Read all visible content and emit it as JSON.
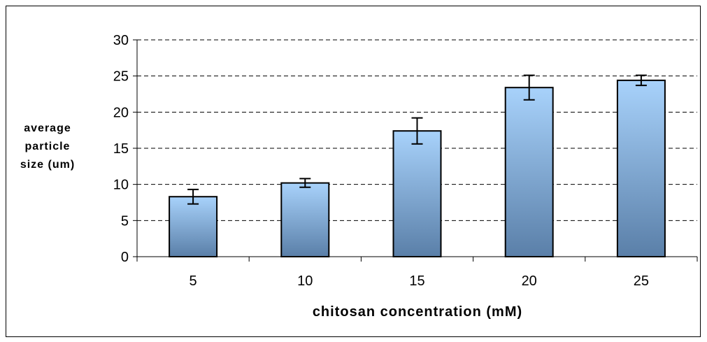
{
  "chart_data": {
    "type": "bar",
    "categories": [
      "5",
      "10",
      "15",
      "20",
      "25"
    ],
    "values": [
      8.3,
      10.2,
      17.4,
      23.4,
      24.4
    ],
    "errors": [
      1.0,
      0.6,
      1.8,
      1.7,
      0.7
    ],
    "title": "",
    "xlabel": "chitosan concentration (mM)",
    "ylabel_lines": [
      "average",
      "particle",
      "size (um)"
    ],
    "ylim": [
      0,
      30
    ],
    "yticks": [
      0,
      5,
      10,
      15,
      20,
      25,
      30
    ],
    "grid": "dashed horizontal",
    "legend": "none",
    "colors": {
      "bar_top": "#a8d2fb",
      "bar_bottom": "#5a7fa8",
      "bar_edge": "#000000",
      "grid": "#000000"
    }
  }
}
